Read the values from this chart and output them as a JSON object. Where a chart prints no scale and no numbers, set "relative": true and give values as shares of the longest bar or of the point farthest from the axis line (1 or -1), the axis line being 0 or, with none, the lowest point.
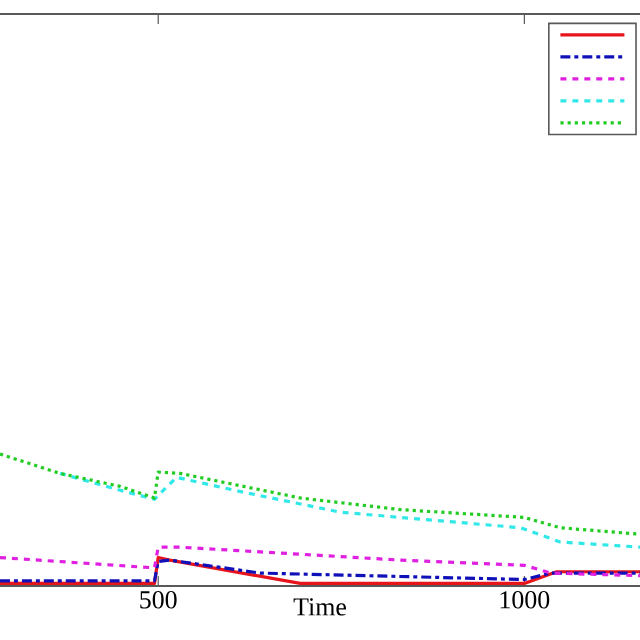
{
  "chart_data": {
    "type": "line",
    "xlabel": "Time",
    "relative": true,
    "xlim": [
      284,
      1158
    ],
    "xticks": [
      500,
      1000
    ],
    "tick_labels": "x",
    "series": [
      {
        "color": "#e8141c",
        "line_style": "solid",
        "x": [
          284,
          495,
          500,
          516,
          694,
          1000,
          1044,
          1158
        ],
        "values": [
          0,
          0,
          0.2,
          0.18,
          0,
          0,
          0.09,
          0.09
        ]
      },
      {
        "color": "#1010b8",
        "line_style": "dashdot",
        "x": [
          284,
          495,
          500,
          516,
          639,
          1000,
          1036,
          1158
        ],
        "values": [
          0.02,
          0.02,
          0.17,
          0.18,
          0.08,
          0.03,
          0.08,
          0.08
        ]
      },
      {
        "color": "#e020e0",
        "line_style": "dashed",
        "x": [
          284,
          495,
          500,
          530,
          831,
          1000,
          1036,
          1158
        ],
        "values": [
          0.2,
          0.12,
          0.28,
          0.28,
          0.18,
          0.14,
          0.08,
          0.06
        ]
      },
      {
        "color": "#30e8e8",
        "line_style": "dashed",
        "x": [
          366,
          448,
          495,
          525,
          612,
          749,
          995,
          1049,
          1158
        ],
        "values": [
          0.85,
          0.72,
          0.65,
          0.82,
          0.71,
          0.55,
          0.43,
          0.32,
          0.28
        ]
      },
      {
        "color": "#22cc22",
        "line_style": "dotted",
        "x": [
          284,
          366,
          448,
          495,
          500,
          530,
          694,
          831,
          1000,
          1049,
          1158
        ],
        "values": [
          1,
          0.85,
          0.75,
          0.66,
          0.86,
          0.85,
          0.66,
          0.57,
          0.51,
          0.43,
          0.38
        ]
      }
    ]
  }
}
